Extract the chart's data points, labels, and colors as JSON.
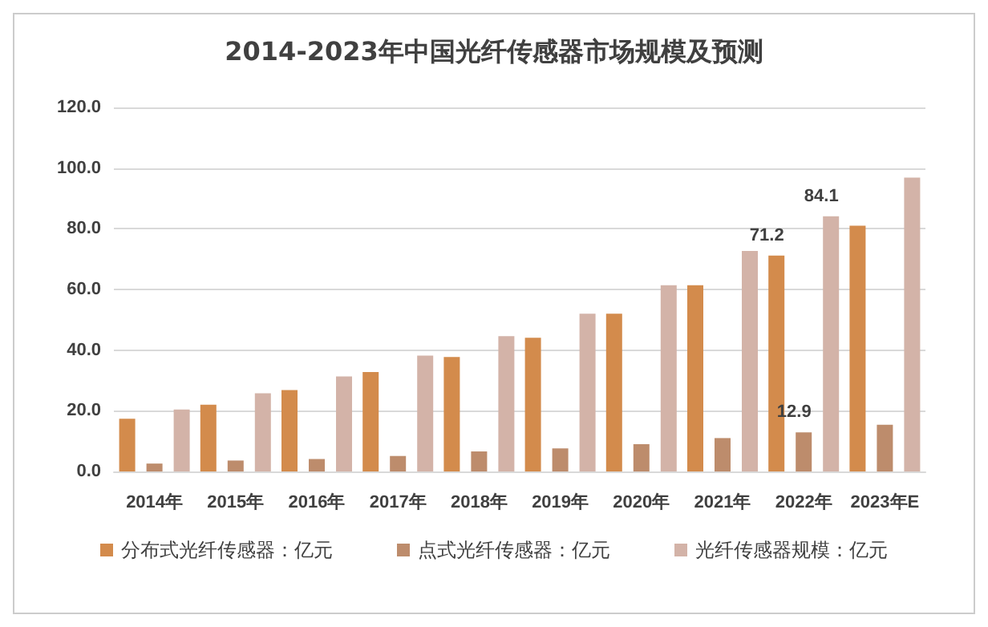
{
  "chart_data": {
    "type": "bar",
    "title": "2014-2023年中国光纤传感器市场规模及预测",
    "categories": [
      "2014年",
      "2015年",
      "2016年",
      "2017年",
      "2018年",
      "2019年",
      "2020年",
      "2021年",
      "2022年",
      "2023年E"
    ],
    "series": [
      {
        "name": "分布式光纤传感器：亿元",
        "color": "#d38b4c",
        "values": [
          17.4,
          22.0,
          26.8,
          32.8,
          37.7,
          44.1,
          52.0,
          61.4,
          71.2,
          81.0
        ],
        "value_labels": [
          null,
          null,
          null,
          null,
          null,
          null,
          null,
          null,
          "71.2",
          null
        ]
      },
      {
        "name": "点式光纤传感器：亿元",
        "color": "#bd8c6c",
        "values": [
          2.6,
          3.6,
          4.1,
          5.1,
          6.6,
          7.6,
          9.0,
          11.0,
          12.9,
          15.4
        ],
        "value_labels": [
          null,
          null,
          null,
          null,
          null,
          null,
          null,
          null,
          "12.9",
          null
        ]
      },
      {
        "name": "光纤传感器规模：亿元",
        "color": "#d3b3a8",
        "values": [
          20.4,
          25.8,
          31.3,
          38.2,
          44.6,
          52.0,
          61.4,
          72.7,
          84.1,
          96.9
        ],
        "value_labels": [
          null,
          null,
          null,
          null,
          null,
          null,
          null,
          null,
          "84.1",
          null
        ]
      }
    ],
    "ylim": [
      0,
      120
    ],
    "yticks": [
      {
        "value": 0,
        "label": "0.0"
      },
      {
        "value": 20,
        "label": "20.0"
      },
      {
        "value": 40,
        "label": "40.0"
      },
      {
        "value": 60,
        "label": "60.0"
      },
      {
        "value": 80,
        "label": "80.0"
      },
      {
        "value": 100,
        "label": "100.0"
      },
      {
        "value": 120,
        "label": "120.0"
      }
    ],
    "grid": "y",
    "legend": "bottom"
  }
}
